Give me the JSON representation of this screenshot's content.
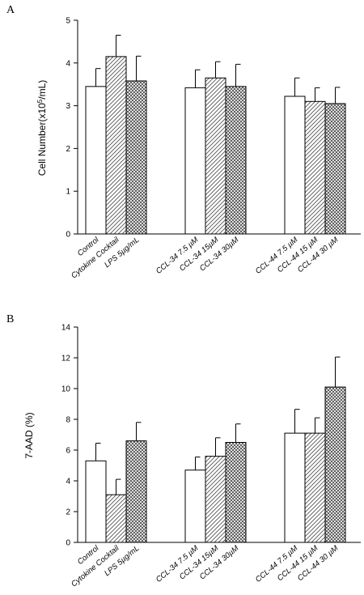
{
  "chart_data": [
    {
      "type": "bar",
      "panel_label": "A",
      "ylabel_main": "Cell Number(x10",
      "ylabel_sup": "5",
      "ylabel_tail": "/mL)",
      "ylim": [
        0,
        5
      ],
      "yticks": [
        "0",
        "1",
        "2",
        "3",
        "4",
        "5"
      ],
      "grid": false,
      "categories": [
        "Control",
        "Cytokine Cocktail",
        "LPS 5µg/mL",
        "CCL-34 7.5 µM",
        "CCL-34 15µM",
        "CCL-34 30µM",
        "CCL-44 7.5 µM",
        "CCL-44 15 µM",
        "CCL-44 30 µM"
      ],
      "values": [
        3.45,
        4.15,
        3.58,
        3.42,
        3.65,
        3.45,
        3.22,
        3.1,
        3.05
      ],
      "errors": [
        0.42,
        0.5,
        0.58,
        0.42,
        0.38,
        0.52,
        0.43,
        0.32,
        0.38
      ],
      "fills": [
        "white",
        "hatch",
        "cross",
        "white",
        "hatch",
        "cross",
        "white",
        "hatch",
        "cross"
      ]
    },
    {
      "type": "bar",
      "panel_label": "B",
      "ylabel": "7-AAD (%)",
      "ylim": [
        0,
        14
      ],
      "yticks": [
        "0",
        "2",
        "4",
        "6",
        "8",
        "10",
        "12",
        "14"
      ],
      "grid": false,
      "categories": [
        "Control",
        "Cytokine Cocktail",
        "LPS 5µg/mL",
        "CCL-34 7.5 µM",
        "CCL-34 15µM",
        "CCL-34 30µM",
        "CCL-44 7.5 µM",
        "CCL-44 15 µM",
        "CCL-44 30 µM"
      ],
      "values": [
        5.3,
        3.1,
        6.6,
        4.7,
        5.6,
        6.5,
        7.1,
        7.1,
        10.1
      ],
      "errors": [
        1.15,
        1.0,
        1.2,
        0.85,
        1.2,
        1.2,
        1.55,
        1.0,
        1.95
      ],
      "fills": [
        "white",
        "hatch",
        "cross",
        "white",
        "hatch",
        "cross",
        "white",
        "hatch",
        "cross"
      ]
    }
  ]
}
